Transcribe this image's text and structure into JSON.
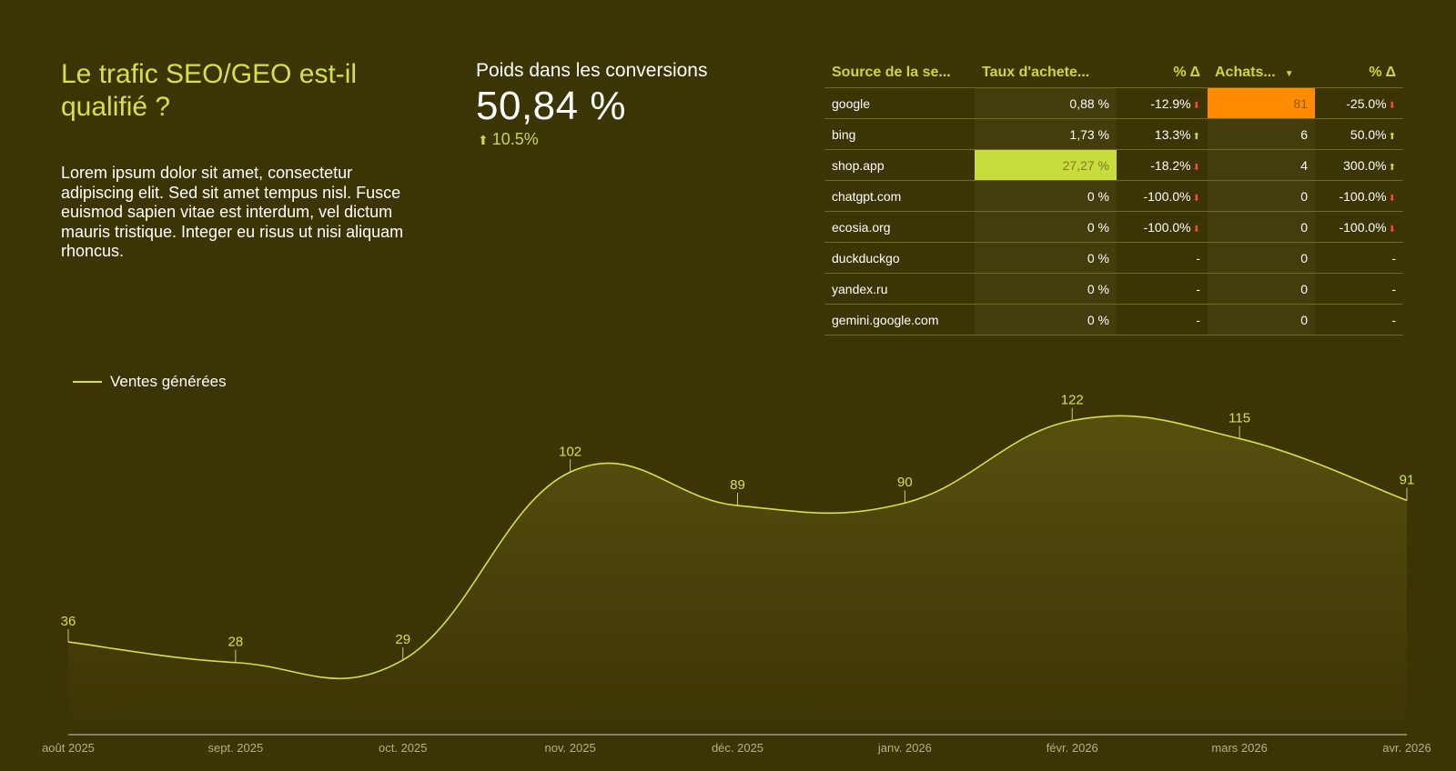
{
  "header": {
    "title": "Le trafic SEO/GEO est-il qualifié ?",
    "description": "Lorem ipsum dolor sit amet, consectetur adipiscing elit. Sed sit amet tempus nisl. Fusce euismod sapien vitae est interdum, vel dictum mauris tristique. Integer eu risus ut nisi aliquam rhoncus."
  },
  "kpi": {
    "label": "Poids dans les conversions",
    "value": "50,84 %",
    "delta": "10.5%",
    "delta_direction": "up"
  },
  "table": {
    "headers": [
      "Source de la se...",
      "Taux d'achete...",
      "% Δ",
      "Achats...",
      "% Δ"
    ],
    "sorted_column": "Achats...",
    "rows": [
      {
        "source": "google",
        "rate": "0,88 %",
        "rate_delta": "-12.9%",
        "rate_dir": "down",
        "purchases": "81",
        "purch_delta": "-25.0%",
        "purch_dir": "down"
      },
      {
        "source": "bing",
        "rate": "1,73 %",
        "rate_delta": "13.3%",
        "rate_dir": "up",
        "purchases": "6",
        "purch_delta": "50.0%",
        "purch_dir": "up"
      },
      {
        "source": "shop.app",
        "rate": "27,27 %",
        "rate_delta": "-18.2%",
        "rate_dir": "down",
        "purchases": "4",
        "purch_delta": "300.0%",
        "purch_dir": "up"
      },
      {
        "source": "chatgpt.com",
        "rate": "0 %",
        "rate_delta": "-100.0%",
        "rate_dir": "down",
        "purchases": "0",
        "purch_delta": "-100.0%",
        "purch_dir": "down"
      },
      {
        "source": "ecosia.org",
        "rate": "0 %",
        "rate_delta": "-100.0%",
        "rate_dir": "down",
        "purchases": "0",
        "purch_delta": "-100.0%",
        "purch_dir": "down"
      },
      {
        "source": "duckduckgo",
        "rate": "0 %",
        "rate_delta": "-",
        "rate_dir": "",
        "purchases": "0",
        "purch_delta": "-",
        "purch_dir": ""
      },
      {
        "source": "yandex.ru",
        "rate": "0 %",
        "rate_delta": "-",
        "rate_dir": "",
        "purchases": "0",
        "purch_delta": "-",
        "purch_dir": ""
      },
      {
        "source": "gemini.google.com",
        "rate": "0 %",
        "rate_delta": "-",
        "rate_dir": "",
        "purchases": "0",
        "purch_delta": "-",
        "purch_dir": ""
      }
    ],
    "highlights": {
      "max_rate_color": "#c8dc3c",
      "max_purchases_color": "#ff8c00"
    }
  },
  "chart_data": {
    "type": "area",
    "title": "",
    "xlabel": "",
    "ylabel": "",
    "legend": "top-left",
    "grid": false,
    "categories": [
      "août 2025",
      "sept. 2025",
      "oct. 2025",
      "nov. 2025",
      "déc. 2025",
      "janv. 2026",
      "févr. 2026",
      "mars 2026",
      "avr. 2026"
    ],
    "series": [
      {
        "name": "Ventes générées",
        "values": [
          36,
          28,
          29,
          102,
          89,
          90,
          122,
          115,
          91
        ]
      }
    ],
    "ylim": [
      0,
      130
    ],
    "colors": {
      "line": "#d7e04a",
      "fill_top": "#56500f",
      "fill_bottom": "#3b3405",
      "axis": "#cccccc",
      "tick_label": "#b5b08a",
      "data_label": "#d7e04a"
    }
  }
}
